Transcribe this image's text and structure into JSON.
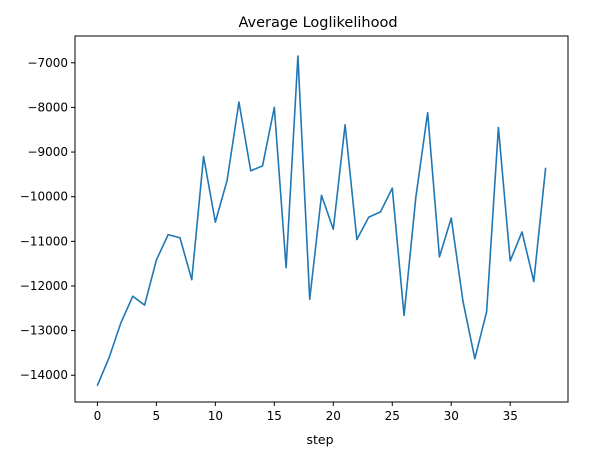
{
  "chart_data": {
    "type": "line",
    "title": "Average Loglikelihood",
    "xlabel": "step",
    "ylabel": "",
    "xlim": [
      -1.9,
      39.9
    ],
    "ylim": [
      -14600,
      -6400
    ],
    "xticks": [
      0,
      5,
      10,
      15,
      20,
      25,
      30,
      35
    ],
    "yticks": [
      -14000,
      -13000,
      -12000,
      -11000,
      -10000,
      -9000,
      -8000,
      -7000
    ],
    "xtick_labels": [
      "0",
      "5",
      "10",
      "15",
      "20",
      "25",
      "30",
      "35"
    ],
    "ytick_labels": [
      "−14000",
      "−13000",
      "−12000",
      "−11000",
      "−10000",
      "−9000",
      "−8000",
      "−7000"
    ],
    "grid": false,
    "color": "#1f77b4",
    "series": [
      {
        "x": [
          0,
          1,
          2,
          3,
          4,
          5,
          6,
          7,
          8,
          9,
          10,
          11,
          12,
          13,
          14,
          15,
          16,
          17,
          18,
          19,
          20,
          21,
          22,
          23,
          24,
          25,
          26,
          27,
          28,
          29,
          30,
          31,
          32,
          33,
          34,
          35,
          36,
          37,
          38
        ],
        "values": [
          -14230,
          -13600,
          -12820,
          -12230,
          -12430,
          -11420,
          -10850,
          -10920,
          -11860,
          -9100,
          -10570,
          -9630,
          -7880,
          -9420,
          -9310,
          -8000,
          -11590,
          -6850,
          -12300,
          -9970,
          -10730,
          -8390,
          -10960,
          -10460,
          -10340,
          -9810,
          -12660,
          -10010,
          -8120,
          -11350,
          -10480,
          -12350,
          -13630,
          -12580,
          -8450,
          -11440,
          -10790,
          -11900,
          -9360
        ]
      }
    ]
  }
}
